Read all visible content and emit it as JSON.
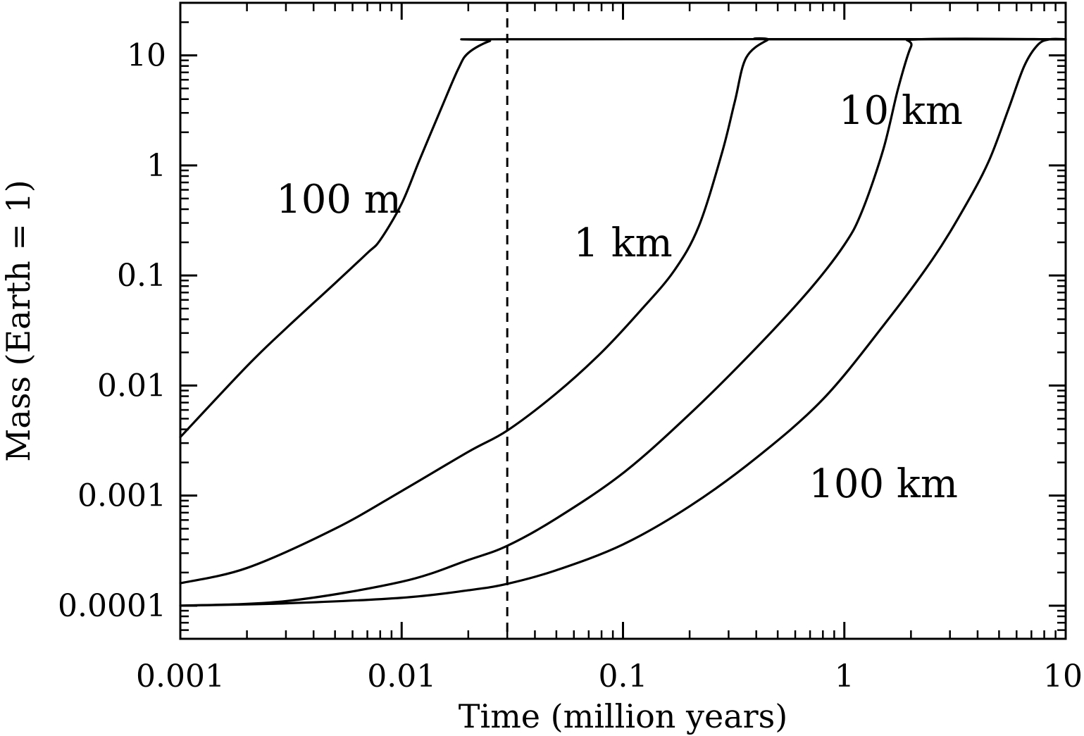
{
  "chart_data": {
    "type": "line",
    "title": "",
    "xlabel": "Time (million years)",
    "ylabel": "Mass (Earth = 1)",
    "xscale": "log",
    "yscale": "log",
    "xlim": [
      0.001,
      10
    ],
    "ylim": [
      5e-05,
      30
    ],
    "grid": false,
    "x_ticks": [
      {
        "value": 0.001,
        "label": "0.001"
      },
      {
        "value": 0.01,
        "label": "0.01"
      },
      {
        "value": 0.1,
        "label": "0.1"
      },
      {
        "value": 1,
        "label": "1"
      },
      {
        "value": 10,
        "label": "10"
      }
    ],
    "y_ticks": [
      {
        "value": 0.0001,
        "label": "0.0001"
      },
      {
        "value": 0.001,
        "label": "0.001"
      },
      {
        "value": 0.01,
        "label": "0.01"
      },
      {
        "value": 0.1,
        "label": "0.1"
      },
      {
        "value": 1,
        "label": "1"
      },
      {
        "value": 10,
        "label": "10"
      }
    ],
    "reference_lines": [
      {
        "orientation": "vertical",
        "x": 0.03,
        "style": "dashed"
      }
    ],
    "series": [
      {
        "name": "100 m",
        "x": [
          0.001,
          0.002,
          0.003,
          0.005,
          0.007,
          0.008,
          0.01,
          0.012,
          0.015,
          0.018,
          0.02,
          0.025,
          0.03,
          10
        ],
        "y": [
          0.0034,
          0.015,
          0.033,
          0.085,
          0.16,
          0.21,
          0.45,
          1.1,
          3.2,
          7.5,
          10.5,
          13.5,
          14,
          14
        ]
      },
      {
        "name": "1 km",
        "x": [
          0.001,
          0.002,
          0.005,
          0.01,
          0.02,
          0.03,
          0.05,
          0.08,
          0.12,
          0.17,
          0.22,
          0.28,
          0.32,
          0.36,
          0.45,
          0.5,
          10
        ],
        "y": [
          0.00016,
          0.00022,
          0.0005,
          0.0011,
          0.0025,
          0.0039,
          0.0085,
          0.02,
          0.048,
          0.11,
          0.28,
          1.3,
          3.8,
          9.5,
          13.8,
          14,
          14
        ]
      },
      {
        "name": "10 km",
        "x": [
          0.001,
          0.003,
          0.01,
          0.02,
          0.03,
          0.05,
          0.1,
          0.2,
          0.4,
          0.7,
          1,
          1.2,
          1.5,
          1.75,
          2,
          2.2,
          10
        ],
        "y": [
          0.0001,
          0.00011,
          0.000165,
          0.00026,
          0.00035,
          0.00062,
          0.0016,
          0.0055,
          0.022,
          0.075,
          0.19,
          0.38,
          1.4,
          5,
          12,
          14,
          14
        ]
      },
      {
        "name": "100 km",
        "x": [
          0.001,
          0.003,
          0.01,
          0.02,
          0.03,
          0.05,
          0.1,
          0.2,
          0.4,
          0.8,
          1.5,
          2.5,
          3.5,
          4.5,
          5.5,
          6.5,
          7.5,
          8.5,
          10
        ],
        "y": [
          0.0001,
          0.000105,
          0.000118,
          0.000138,
          0.000158,
          0.00021,
          0.00036,
          0.0008,
          0.0022,
          0.0075,
          0.035,
          0.14,
          0.42,
          1.1,
          3.2,
          8,
          12.5,
          14,
          14
        ]
      }
    ],
    "annotations": [
      {
        "text": "100 m",
        "x": 0.0052,
        "y": 0.5,
        "anchor": "center"
      },
      {
        "text": "1 km",
        "x": 0.1,
        "y": 0.2,
        "anchor": "center"
      },
      {
        "text": "10 km",
        "x": 1.8,
        "y": 3.2,
        "anchor": "center"
      },
      {
        "text": "100 km",
        "x": 1.5,
        "y": 0.0013,
        "anchor": "center"
      }
    ]
  }
}
